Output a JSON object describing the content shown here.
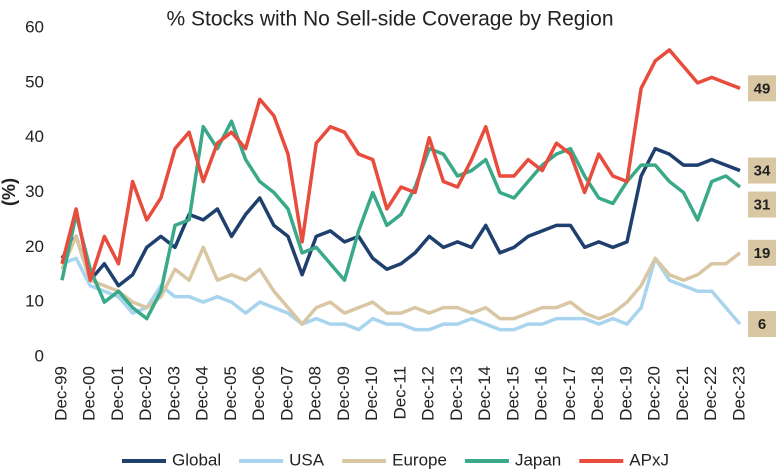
{
  "chart_data": {
    "type": "line",
    "title": "% Stocks with No Sell-side Coverage by Region",
    "y_label": "(%)",
    "categories": [
      "Dec-99",
      null,
      "Dec-00",
      null,
      "Dec-01",
      null,
      "Dec-02",
      null,
      "Dec-03",
      null,
      "Dec-04",
      null,
      "Dec-05",
      null,
      "Dec-06",
      null,
      "Dec-07",
      null,
      "Dec-08",
      null,
      "Dec-09",
      null,
      "Dec-10",
      null,
      "Dec-11",
      null,
      "Dec-12",
      null,
      "Dec-13",
      null,
      "Dec-14",
      null,
      "Dec-15",
      null,
      "Dec-16",
      null,
      "Dec-17",
      null,
      "Dec-18",
      null,
      "Dec-19",
      null,
      "Dec-20",
      null,
      "Dec-21",
      null,
      "Dec-22",
      null,
      "Dec-23"
    ],
    "series": [
      {
        "name": "Global",
        "color": "#1f3f6e",
        "values": [
          18,
          22,
          14,
          17,
          13,
          15,
          20,
          22,
          20,
          26,
          25,
          27,
          22,
          26,
          29,
          24,
          22,
          15,
          22,
          23,
          21,
          22,
          18,
          16,
          17,
          19,
          22,
          20,
          21,
          20,
          24,
          19,
          20,
          22,
          23,
          24,
          24,
          20,
          21,
          20,
          21,
          33,
          38,
          37,
          35,
          35,
          36,
          35,
          34
        ]
      },
      {
        "name": "USA",
        "color": "#a8d4ee",
        "values": [
          17,
          18,
          13,
          12,
          11,
          8,
          9,
          13,
          11,
          11,
          10,
          11,
          10,
          8,
          10,
          9,
          8,
          6,
          7,
          6,
          6,
          5,
          7,
          6,
          6,
          5,
          5,
          6,
          6,
          7,
          6,
          5,
          5,
          6,
          6,
          7,
          7,
          7,
          6,
          7,
          6,
          9,
          18,
          14,
          13,
          12,
          12,
          9,
          6
        ]
      },
      {
        "name": "Europe",
        "color": "#d9c7a3",
        "values": [
          16,
          22,
          14,
          13,
          12,
          10,
          9,
          11,
          16,
          14,
          20,
          14,
          15,
          14,
          16,
          12,
          9,
          6,
          9,
          10,
          8,
          9,
          10,
          8,
          8,
          9,
          8,
          9,
          9,
          8,
          9,
          7,
          7,
          8,
          9,
          9,
          10,
          8,
          7,
          8,
          10,
          13,
          18,
          15,
          14,
          15,
          17,
          17,
          19
        ]
      },
      {
        "name": "Japan",
        "color": "#3aa98a",
        "values": [
          14,
          26,
          16,
          10,
          12,
          9,
          7,
          12,
          24,
          25,
          42,
          38,
          43,
          36,
          32,
          30,
          27,
          19,
          20,
          17,
          14,
          23,
          30,
          24,
          26,
          31,
          38,
          37,
          33,
          34,
          36,
          30,
          29,
          32,
          35,
          37,
          38,
          33,
          29,
          28,
          32,
          35,
          35,
          32,
          30,
          25,
          32,
          33,
          31
        ]
      },
      {
        "name": "APxJ",
        "color": "#e84c3d",
        "values": [
          17,
          27,
          14,
          22,
          17,
          32,
          25,
          29,
          38,
          41,
          32,
          39,
          41,
          38,
          47,
          44,
          37,
          21,
          39,
          42,
          41,
          37,
          36,
          27,
          31,
          30,
          40,
          32,
          31,
          36,
          42,
          33,
          33,
          36,
          34,
          39,
          37,
          30,
          37,
          33,
          32,
          49,
          54,
          56,
          53,
          50,
          51,
          50,
          49
        ]
      }
    ],
    "ylim": [
      0,
      60
    ],
    "yticks": [
      0,
      10,
      20,
      30,
      40,
      50,
      60
    ],
    "grid": false,
    "legend": "bottom"
  }
}
